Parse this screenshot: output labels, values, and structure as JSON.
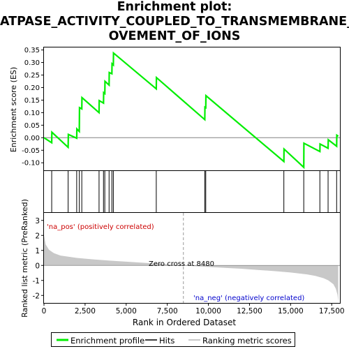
{
  "title_lines": [
    "Enrichment plot:",
    "ATPASE_ACTIVITY_COUPLED_TO_TRANSMEMBRANE_M",
    "OVEMENT_OF_IONS"
  ],
  "colors": {
    "es_line": "#00ee00",
    "hit": "#000000",
    "pos_label": "#cc0000",
    "neg_label": "#0000cc",
    "metric_fill": "#c8c8c8",
    "zero_cross": "#999999"
  },
  "chart_data": {
    "type": "line",
    "title": "Enrichment plot: ATPASE_ACTIVITY_COUPLED_TO_TRANSMEMBRANE_MOVEMENT_OF_IONS",
    "xlabel": "Rank in Ordered Dataset",
    "x_tick_labels": [
      "0",
      "2,500",
      "5,000",
      "7,500",
      "10,000",
      "12,500",
      "15,000",
      "17,500"
    ],
    "x_ticks": [
      0,
      2500,
      5000,
      7500,
      10000,
      12500,
      15000,
      17500
    ],
    "xlim": [
      0,
      18000
    ],
    "es_panel": {
      "ylabel": "Enrichment score (ES)",
      "ylim": [
        -0.13,
        0.36
      ],
      "y_ticks": [
        -0.1,
        -0.05,
        0.0,
        0.05,
        0.1,
        0.15,
        0.2,
        0.25,
        0.3,
        0.35
      ],
      "y_tick_labels": [
        "-0.10",
        "-0.05",
        "0.00",
        "0.05",
        "0.10",
        "0.15",
        "0.20",
        "0.25",
        "0.30",
        "0.35"
      ],
      "series": [
        {
          "name": "Enrichment profile",
          "x": [
            0,
            470,
            480,
            1470,
            1480,
            1990,
            2000,
            2150,
            2160,
            2300,
            2310,
            3350,
            3360,
            3620,
            3630,
            3700,
            3710,
            3960,
            3970,
            4130,
            4140,
            4220,
            4230,
            6830,
            6840,
            9780,
            9790,
            9840,
            9850,
            14590,
            14600,
            15800,
            15810,
            16780,
            16790,
            17280,
            17290,
            17800,
            17810,
            17900
          ],
          "y": [
            0.0,
            -0.02,
            0.022,
            -0.038,
            0.013,
            -0.002,
            0.035,
            0.025,
            0.12,
            0.115,
            0.16,
            0.1,
            0.148,
            0.138,
            0.18,
            0.176,
            0.225,
            0.21,
            0.26,
            0.255,
            0.295,
            0.29,
            0.338,
            0.195,
            0.24,
            0.072,
            0.122,
            0.12,
            0.168,
            -0.095,
            -0.045,
            -0.118,
            -0.022,
            -0.055,
            -0.025,
            -0.042,
            -0.008,
            -0.034,
            0.01,
            0.006
          ]
        }
      ]
    },
    "hits": [
      470,
      1470,
      1990,
      2150,
      2300,
      3350,
      3620,
      3700,
      3960,
      4130,
      4220,
      6830,
      9780,
      9840,
      14590,
      15800,
      16780,
      17280,
      17800
    ],
    "metric_panel": {
      "ylabel": "Ranked list metric (PreRanked)",
      "ylim": [
        -2.5,
        3.5
      ],
      "y_ticks": [
        -2,
        -1,
        0,
        1,
        2,
        3
      ],
      "y_tick_labels": [
        "-2",
        "-1",
        "0",
        "1",
        "2",
        "3"
      ],
      "profile_x": [
        0,
        100,
        300,
        600,
        1000,
        2000,
        3000,
        4000,
        5000,
        6000,
        7000,
        8000,
        8480,
        9000,
        10000,
        11000,
        12000,
        13000,
        14000,
        15000,
        16000,
        16500,
        17000,
        17300,
        17600,
        17750,
        17850,
        17900
      ],
      "profile_y": [
        2.0,
        1.4,
        1.05,
        0.82,
        0.66,
        0.5,
        0.4,
        0.32,
        0.25,
        0.18,
        0.11,
        0.04,
        0.0,
        -0.04,
        -0.1,
        -0.16,
        -0.22,
        -0.3,
        -0.38,
        -0.47,
        -0.6,
        -0.7,
        -0.85,
        -1.0,
        -1.25,
        -1.55,
        -1.95,
        -2.4
      ]
    },
    "heatmap_colors": [
      "#f0192c",
      "#f34655",
      "#f76d7a",
      "#fa9fab",
      "#fcc4d9",
      "#ded8f6",
      "#c2c8f7",
      "#9898f2",
      "#6e6ef0",
      "#4c4ceb",
      "#2121d9"
    ],
    "heatmap_bounds": [
      0,
      450,
      3200,
      4400,
      6150,
      8480,
      10800,
      12700,
      14100,
      15500,
      16900,
      17900
    ],
    "zero_cross_text": "Zero cross at 8480",
    "zero_cross_rank": 8480,
    "pos_label": "'na_pos' (positively correlated)",
    "neg_label": "'na_neg' (negatively correlated)",
    "legend": [
      "Enrichment profile",
      "Hits",
      "Ranking metric scores"
    ]
  }
}
